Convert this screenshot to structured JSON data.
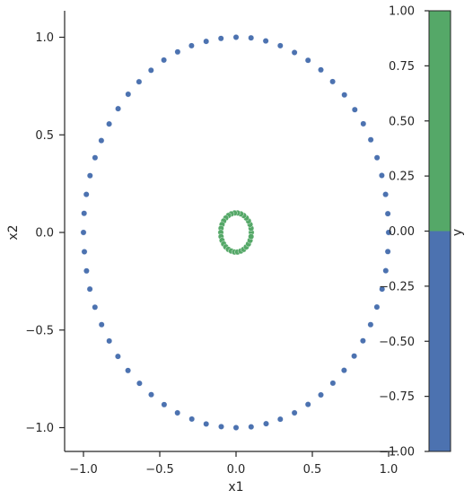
{
  "chart_data": {
    "type": "scatter",
    "xlabel": "x1",
    "ylabel": "x2",
    "xlim": [
      -1.12,
      1.12
    ],
    "ylim": [
      -1.12,
      1.12
    ],
    "xticks": [
      -1.0,
      -0.5,
      0.0,
      0.5,
      1.0
    ],
    "xtick_labels": [
      "−1.0",
      "−0.5",
      "0.0",
      "0.5",
      "1.0"
    ],
    "yticks": [
      -1.0,
      -0.5,
      0.0,
      0.5,
      1.0
    ],
    "ytick_labels": [
      "−1.0",
      "−0.5",
      "0.0",
      "0.5",
      "1.0"
    ],
    "grid": false,
    "series": [
      {
        "outer_ring": true,
        "color": "#4c72b0",
        "points": [
          [
            1.0,
            0.0
          ],
          [
            0.995,
            0.096
          ],
          [
            0.98,
            0.195
          ],
          [
            0.955,
            0.292
          ],
          [
            0.924,
            0.383
          ],
          [
            0.883,
            0.475
          ],
          [
            0.834,
            0.557
          ],
          [
            0.778,
            0.629
          ],
          [
            0.71,
            0.705
          ],
          [
            0.633,
            0.773
          ],
          [
            0.556,
            0.833
          ],
          [
            0.472,
            0.882
          ],
          [
            0.383,
            0.922
          ],
          [
            0.29,
            0.957
          ],
          [
            0.195,
            0.981
          ],
          [
            0.098,
            0.997
          ],
          [
            0.0,
            1.0
          ],
          [
            -0.099,
            0.994
          ],
          [
            -0.196,
            0.979
          ],
          [
            -0.292,
            0.957
          ],
          [
            -0.383,
            0.925
          ],
          [
            -0.473,
            0.883
          ],
          [
            -0.557,
            0.831
          ],
          [
            -0.636,
            0.772
          ],
          [
            -0.707,
            0.708
          ],
          [
            -0.773,
            0.634
          ],
          [
            -0.832,
            0.556
          ],
          [
            -0.883,
            0.471
          ],
          [
            -0.924,
            0.383
          ],
          [
            -0.957,
            0.291
          ],
          [
            -0.981,
            0.195
          ],
          [
            -0.996,
            0.098
          ],
          [
            -1.0,
            0.0
          ],
          [
            -0.994,
            -0.099
          ],
          [
            -0.98,
            -0.197
          ],
          [
            -0.958,
            -0.29
          ],
          [
            -0.925,
            -0.383
          ],
          [
            -0.881,
            -0.472
          ],
          [
            -0.831,
            -0.556
          ],
          [
            -0.774,
            -0.635
          ],
          [
            -0.708,
            -0.707
          ],
          [
            -0.633,
            -0.773
          ],
          [
            -0.556,
            -0.831
          ],
          [
            -0.471,
            -0.882
          ],
          [
            -0.384,
            -0.924
          ],
          [
            -0.29,
            -0.956
          ],
          [
            -0.196,
            -0.981
          ],
          [
            -0.097,
            -0.995
          ],
          [
            0.0,
            -1.0
          ],
          [
            0.099,
            -0.996
          ],
          [
            0.197,
            -0.98
          ],
          [
            0.29,
            -0.957
          ],
          [
            0.383,
            -0.924
          ],
          [
            0.472,
            -0.881
          ],
          [
            0.556,
            -0.832
          ],
          [
            0.635,
            -0.772
          ],
          [
            0.708,
            -0.706
          ],
          [
            0.774,
            -0.633
          ],
          [
            0.832,
            -0.555
          ],
          [
            0.882,
            -0.472
          ],
          [
            0.923,
            -0.382
          ],
          [
            0.957,
            -0.29
          ],
          [
            0.981,
            -0.196
          ],
          [
            0.995,
            -0.098
          ]
        ]
      },
      {
        "inner_ring": true,
        "color": "#55a868",
        "points": [
          [
            0.1,
            0.0
          ],
          [
            0.098,
            0.021
          ],
          [
            0.092,
            0.041
          ],
          [
            0.081,
            0.059
          ],
          [
            0.067,
            0.074
          ],
          [
            0.05,
            0.087
          ],
          [
            0.031,
            0.095
          ],
          [
            0.01,
            0.1
          ],
          [
            -0.01,
            0.1
          ],
          [
            -0.031,
            0.095
          ],
          [
            -0.05,
            0.087
          ],
          [
            -0.067,
            0.074
          ],
          [
            -0.081,
            0.059
          ],
          [
            -0.092,
            0.041
          ],
          [
            -0.098,
            0.021
          ],
          [
            -0.1,
            0.0
          ],
          [
            -0.098,
            -0.021
          ],
          [
            -0.092,
            -0.041
          ],
          [
            -0.081,
            -0.059
          ],
          [
            -0.067,
            -0.074
          ],
          [
            -0.05,
            -0.087
          ],
          [
            -0.031,
            -0.095
          ],
          [
            -0.01,
            -0.1
          ],
          [
            0.01,
            -0.1
          ],
          [
            0.031,
            -0.095
          ],
          [
            0.05,
            -0.087
          ],
          [
            0.067,
            -0.074
          ],
          [
            0.081,
            -0.059
          ],
          [
            0.092,
            -0.041
          ],
          [
            0.098,
            -0.021
          ]
        ]
      }
    ],
    "colorbar": {
      "label": "y",
      "range": [
        -1.0,
        1.0
      ],
      "ticks": [
        1.0,
        0.75,
        0.5,
        0.25,
        0.0,
        -0.25,
        -0.5,
        -0.75,
        -1.0
      ],
      "tick_labels": [
        "1.00",
        "0.75",
        "0.50",
        "0.25",
        "0.00",
        "−0.25",
        "−0.50",
        "−0.75",
        "−1.00"
      ],
      "segments": [
        {
          "from": 0.0,
          "to": 1.0,
          "color": "#55a868"
        },
        {
          "from": -1.0,
          "to": 0.0,
          "color": "#4c72b0"
        }
      ]
    }
  }
}
